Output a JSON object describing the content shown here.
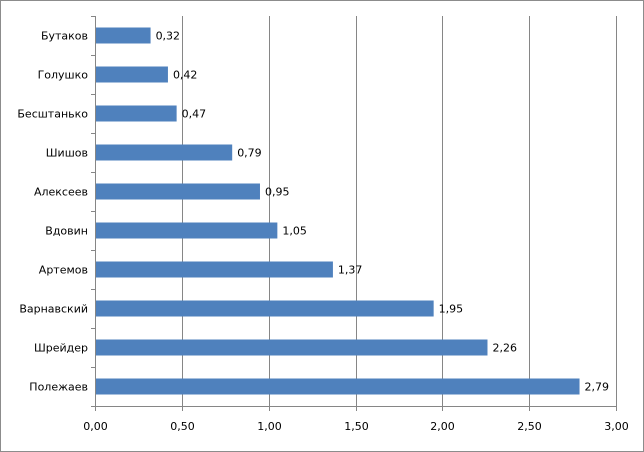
{
  "chart_data": {
    "type": "bar",
    "orientation": "horizontal",
    "categories": [
      "Бутаков",
      "Голушко",
      "Бесштанько",
      "Шишов",
      "Алексеев",
      "Вдовин",
      "Артемов",
      "Варнавский",
      "Шрейдер",
      "Полежаев"
    ],
    "values": [
      0.32,
      0.42,
      0.47,
      0.79,
      0.95,
      1.05,
      1.37,
      1.95,
      2.26,
      2.79
    ],
    "value_labels": [
      "0,32",
      "0,42",
      "0,47",
      "0,79",
      "0,95",
      "1,05",
      "1,37",
      "1,95",
      "2,26",
      "2,79"
    ],
    "x_ticks": [
      0,
      0.5,
      1,
      1.5,
      2,
      2.5,
      3
    ],
    "x_tick_labels": [
      "0,00",
      "0,50",
      "1,00",
      "1,50",
      "2,00",
      "2,50",
      "3,00"
    ],
    "xlim": [
      0,
      3
    ],
    "title": "",
    "xlabel": "",
    "ylabel": "",
    "grid": "vertical major gridlines",
    "legend": "none",
    "bar_color": "#4F81BD",
    "grid_color": "#868686"
  }
}
